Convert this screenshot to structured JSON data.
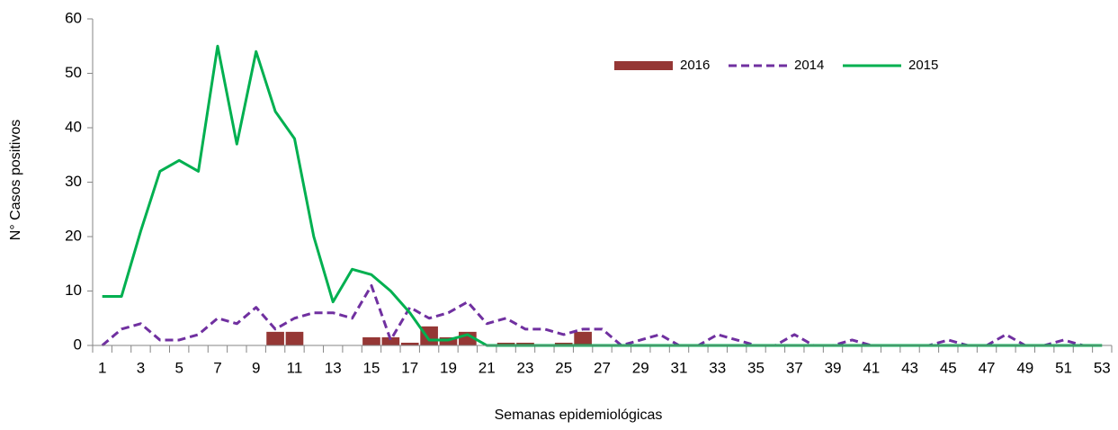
{
  "chart_data": {
    "type": "combo",
    "x_label": "Semanas epidemiológicas",
    "y_label": "N° Casos positivos",
    "categories": [
      "1",
      null,
      "3",
      null,
      "5",
      null,
      "7",
      null,
      "9",
      null,
      "11",
      null,
      "13",
      null,
      "15",
      null,
      "17",
      null,
      "19",
      null,
      "21",
      null,
      "23",
      null,
      "25",
      null,
      "27",
      null,
      "29",
      null,
      "31",
      null,
      "33",
      null,
      "35",
      null,
      "37",
      null,
      "39",
      null,
      "41",
      null,
      "43",
      null,
      "45",
      null,
      "47",
      null,
      "49",
      null,
      "51",
      null,
      "53"
    ],
    "series": [
      {
        "name": "2016",
        "type": "bar",
        "color": "#953735",
        "values": [
          0,
          0,
          0,
          0,
          0,
          0,
          0,
          0,
          0,
          2.5,
          2.5,
          0,
          0,
          0,
          1.5,
          1.5,
          0.5,
          3.5,
          1.5,
          2.5,
          0,
          0.5,
          0.5,
          0,
          0.5,
          2.5,
          null,
          null,
          null,
          null,
          null,
          null,
          null,
          null,
          null,
          null,
          null,
          null,
          null,
          null,
          null,
          null,
          null,
          null,
          null,
          null,
          null,
          null,
          null,
          null,
          null,
          null,
          null
        ]
      },
      {
        "name": "2014",
        "type": "line",
        "style": "dashed",
        "color": "#7030a0",
        "values": [
          0,
          3,
          4,
          1,
          1,
          2,
          5,
          4,
          7,
          3,
          5,
          6,
          6,
          5,
          11,
          1,
          7,
          5,
          6,
          8,
          4,
          5,
          3,
          3,
          2,
          3,
          3,
          0,
          1,
          2,
          0,
          0,
          2,
          1,
          0,
          0,
          2,
          0,
          0,
          1,
          0,
          0,
          0,
          0,
          1,
          0,
          0,
          2,
          0,
          0,
          1,
          0,
          0
        ]
      },
      {
        "name": "2015",
        "type": "line",
        "style": "solid",
        "color": "#00b050",
        "values": [
          9,
          9,
          21,
          32,
          34,
          32,
          55,
          37,
          54,
          43,
          38,
          20,
          8,
          14,
          13,
          10,
          6,
          1,
          1,
          2,
          0,
          0,
          0,
          0,
          0,
          0,
          0,
          0,
          0,
          0,
          0,
          0,
          0,
          0,
          0,
          0,
          0,
          0,
          0,
          0,
          0,
          0,
          0,
          0,
          0,
          0,
          0,
          0,
          0,
          0,
          0,
          0,
          0
        ]
      }
    ],
    "ylim": [
      0,
      60
    ],
    "yticks": [
      0,
      10,
      20,
      30,
      40,
      50,
      60
    ],
    "grid": false,
    "legend": "top-right"
  }
}
